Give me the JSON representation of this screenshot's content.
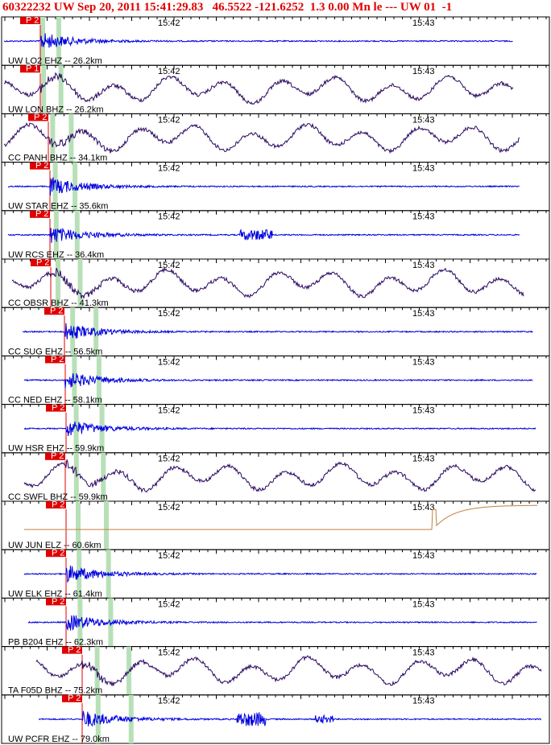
{
  "header": {
    "title": "60322232 UW Sep 20, 2011 15:41:29.83   46.5522 -121.6252  1.3 0.00 Mn le --- UW 01  -1"
  },
  "time_labels": [
    "15:42",
    "15:43"
  ],
  "traces": [
    {
      "label": "UW LO2 EHZ -- 26.2km",
      "pick": "P 2",
      "color": "#0000e0"
    },
    {
      "label": "UW LON BHZ -- 26.2km",
      "pick": "P 1",
      "color": "#2a0860"
    },
    {
      "label": "CC PANH BHZ -- 34.1km",
      "pick": "P 2",
      "color": "#2a0860"
    },
    {
      "label": "UW STAR EHZ -- 35.6km",
      "pick": "P 2",
      "color": "#0000e0"
    },
    {
      "label": "UW RCS EHZ -- 36.4km",
      "pick": "P 2",
      "color": "#0000e0"
    },
    {
      "label": "CC OBSR BHZ -- 41.3km",
      "pick": "P 2",
      "color": "#2a0860"
    },
    {
      "label": "CC SUG EHZ -- 56.5km",
      "pick": "P 2",
      "color": "#0000e0"
    },
    {
      "label": "CC NED EHZ -- 58.1km",
      "pick": "P 2",
      "color": "#0000e0"
    },
    {
      "label": "UW HSR EHZ -- 59.9km",
      "pick": "P 2",
      "color": "#0000e0"
    },
    {
      "label": "CC SWFL BHZ -- 59.9km",
      "pick": "P 2",
      "color": "#2a0860"
    },
    {
      "label": "UW JUN ELZ -- 60.6km",
      "pick": "P 2",
      "color": "#c08040"
    },
    {
      "label": "UW ELK EHZ -- 61.4km",
      "pick": "P 2",
      "color": "#0000e0"
    },
    {
      "label": "PB B204 EHZ -- 62.3km",
      "pick": "P 2",
      "color": "#0000e0"
    },
    {
      "label": "TA F05D BHZ -- 75.2km",
      "pick": "P 2",
      "color": "#2a0860"
    },
    {
      "label": "UW PCFR EHZ -- 79.0km",
      "pick": "P 2",
      "color": "#0000e0"
    }
  ]
}
